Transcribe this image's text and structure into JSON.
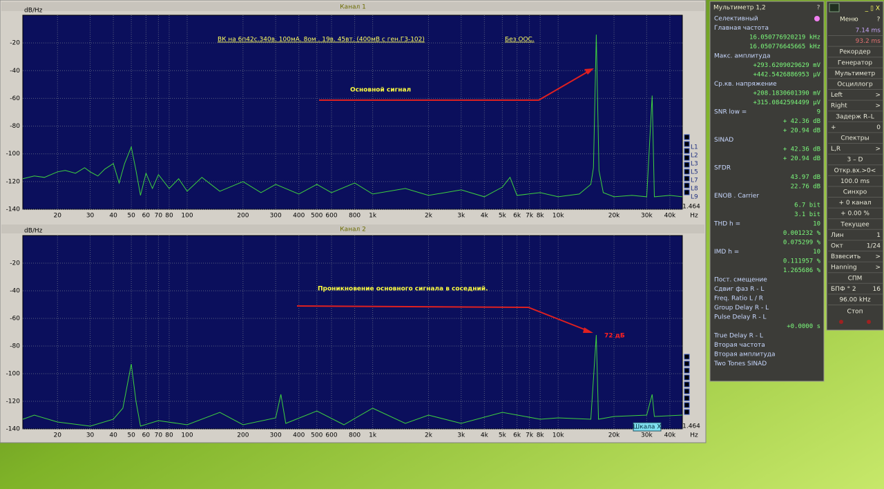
{
  "chart_data": [
    {
      "type": "line",
      "title": "Канал 1",
      "ylabel": "dB/Hz",
      "xunit": "Hz",
      "log_x": true,
      "grid": true,
      "color": "#3fd23f",
      "scale": "1.464",
      "legend": [
        "L1",
        "L2",
        "L3",
        "L5",
        "L7",
        "L8",
        "L9"
      ],
      "annotations": [
        "ВК на 6п42с.340в. 100мА. 8ом . 19в. 45вт. (400мВ с ген.Г3-102)",
        "Без ООС.",
        "Основной сигнал"
      ],
      "xlim": [
        13,
        46700
      ],
      "ylim": [
        -140,
        0
      ],
      "xticks": [
        20,
        30,
        40,
        50,
        60,
        70,
        80,
        100,
        200,
        300,
        400,
        500,
        600,
        800,
        {
          "value": 1000,
          "label": "1k"
        },
        {
          "value": 2000,
          "label": "2k"
        },
        {
          "value": 3000,
          "label": "3k"
        },
        {
          "value": 4000,
          "label": "4k"
        },
        {
          "value": 5000,
          "label": "5k"
        },
        {
          "value": 6000,
          "label": "6k"
        },
        {
          "value": 7000,
          "label": "7k"
        },
        {
          "value": 8000,
          "label": "8k"
        },
        {
          "value": 10000,
          "label": "10k"
        },
        {
          "value": 20000,
          "label": "20k"
        },
        {
          "value": 30000,
          "label": "30k"
        },
        {
          "value": 40000,
          "label": "40k"
        }
      ],
      "yticks": [
        -140,
        -120,
        -100,
        -80,
        -60,
        -40,
        -20
      ],
      "x": [
        13,
        15,
        17,
        20,
        22,
        25,
        28,
        30,
        33,
        36,
        40,
        43,
        46,
        50,
        53,
        56,
        60,
        65,
        70,
        80,
        90,
        100,
        120,
        150,
        200,
        250,
        300,
        400,
        500,
        600,
        800,
        1000,
        1500,
        2000,
        3000,
        4000,
        5000,
        5500,
        6000,
        8000,
        10000,
        13000,
        15000,
        15500,
        16050,
        16600,
        17500,
        20000,
        25000,
        30000,
        32100,
        33000,
        40000,
        46700
      ],
      "values": [
        -118,
        -116,
        -117,
        -113,
        -112,
        -114,
        -110,
        -113,
        -116,
        -111,
        -107,
        -121,
        -107,
        -95,
        -112,
        -130,
        -114,
        -125,
        -115,
        -125,
        -118,
        -127,
        -117,
        -127,
        -120,
        -128,
        -122,
        -129,
        -122,
        -128,
        -121,
        -129,
        -125,
        -130,
        -126,
        -131,
        -124,
        -117,
        -130,
        -128,
        -131,
        -129,
        -122,
        -110,
        -14,
        -112,
        -128,
        -131,
        -130,
        -131,
        -58,
        -131,
        -130,
        -131
      ]
    },
    {
      "type": "line",
      "title": "Канал 2",
      "ylabel": "dB/Hz",
      "xunit": "Hz",
      "log_x": true,
      "grid": true,
      "color": "#3fd23f",
      "scale": "1.464",
      "button": "Шкала X",
      "annotations": [
        "Проникновение основного сигнала в соседний.",
        "72 дБ"
      ],
      "xlim": [
        13,
        46700
      ],
      "ylim": [
        -140,
        0
      ],
      "xticks": [
        20,
        30,
        40,
        50,
        60,
        70,
        80,
        100,
        200,
        300,
        400,
        500,
        600,
        800,
        {
          "value": 1000,
          "label": "1k"
        },
        {
          "value": 2000,
          "label": "2k"
        },
        {
          "value": 3000,
          "label": "3k"
        },
        {
          "value": 4000,
          "label": "4k"
        },
        {
          "value": 5000,
          "label": "5k"
        },
        {
          "value": 6000,
          "label": "6k"
        },
        {
          "value": 7000,
          "label": "7k"
        },
        {
          "value": 8000,
          "label": "8k"
        },
        {
          "value": 10000,
          "label": "10k"
        },
        {
          "value": 20000,
          "label": "20k"
        },
        {
          "value": 30000,
          "label": "30k"
        },
        {
          "value": 40000,
          "label": "40k"
        }
      ],
      "yticks": [
        -140,
        -120,
        -100,
        -80,
        -60,
        -40,
        -20
      ],
      "x": [
        13,
        15,
        20,
        30,
        40,
        45,
        50,
        53,
        56,
        70,
        100,
        150,
        200,
        300,
        320,
        340,
        500,
        700,
        1000,
        1500,
        2000,
        3000,
        5000,
        8000,
        10000,
        15000,
        16050,
        16500,
        20000,
        30000,
        32100,
        33000,
        46700
      ],
      "values": [
        -133,
        -130,
        -135,
        -138,
        -133,
        -125,
        -93,
        -120,
        -138,
        -134,
        -137,
        -128,
        -137,
        -132,
        -115,
        -136,
        -127,
        -137,
        -125,
        -136,
        -130,
        -136,
        -128,
        -133,
        -132,
        -133,
        -72,
        -133,
        -131,
        -130,
        -115,
        -131,
        -130
      ]
    }
  ],
  "multimeter": {
    "title": "Мультиметр 1,2",
    "help": "?",
    "rows": [
      {
        "label": "Селективный"
      },
      {
        "label": "Главная частота"
      },
      {
        "value": "16.050776920219 kHz"
      },
      {
        "value": "16.050776645665 kHz"
      },
      {
        "label": "Макс. амплитуда"
      },
      {
        "value": "+293.6209029629 mV"
      },
      {
        "value": "+442.5426886953 µV"
      },
      {
        "label": "Ср.кв. напряжение"
      },
      {
        "value": "+208.1830601390 mV"
      },
      {
        "value": "+315.0842594499 µV"
      },
      {
        "label": "SNR    low =",
        "value": "9"
      },
      {
        "value": "+ 42.36 dB"
      },
      {
        "value": "+ 20.94 dB"
      },
      {
        "label": "SINAD"
      },
      {
        "value": "+ 42.36 dB"
      },
      {
        "value": "+ 20.94 dB"
      },
      {
        "label": "SFDR"
      },
      {
        "value": "43.97 dB"
      },
      {
        "value": "22.76 dB"
      },
      {
        "label": "ENOB . Carrier"
      },
      {
        "value": "6.7 bit"
      },
      {
        "value": "3.1 bit"
      },
      {
        "label": "THD        h =",
        "value": "10"
      },
      {
        "value": "0.001232 %"
      },
      {
        "value": "0.075299 %"
      },
      {
        "label": "IMD        h =",
        "value": "10"
      },
      {
        "value": "0.111957 %"
      },
      {
        "value": "1.265686 %"
      },
      {
        "label": "Пост. смещение"
      },
      {
        "label": "Сдвиг фаз R - L"
      },
      {
        "label": "Freq. Ratio  L / R"
      },
      {
        "label": "Group Delay R - L"
      },
      {
        "label": "Pulse Delay R - L"
      },
      {
        "value": "+0.0000  s"
      },
      {
        "label": "True Delay R - L"
      },
      {
        "label": "Вторая частота"
      },
      {
        "label": "Вторая амплитуда"
      },
      {
        "label": "Two Tones SINAD"
      }
    ]
  },
  "panel": {
    "window_buttons": "_ ▯ X",
    "title": "Меню",
    "help": "?",
    "stop": "Стоп",
    "rows": [
      {
        "value": "7.14 ms"
      },
      {
        "value": "93.2 ms"
      },
      {
        "label": "Рекордер"
      },
      {
        "label": "Генератор"
      },
      {
        "label": "Мультиметр"
      },
      {
        "label": "Осциллогр"
      },
      {
        "label": "Left",
        "value": ">"
      },
      {
        "label": "Right",
        "value": ">"
      },
      {
        "label": "Задерж R–L"
      },
      {
        "label": "+",
        "value": "0"
      },
      {
        "label": "Спектры"
      },
      {
        "label": "L,R",
        "value": ">"
      },
      {
        "label": "3 – D"
      },
      {
        "label": "Откр.вх.>0<"
      },
      {
        "label": "100.0 ms"
      },
      {
        "label": "Синхро"
      },
      {
        "label": "+ 0 канал"
      },
      {
        "label": "+ 0.00 %"
      },
      {
        "label": "Текущее"
      },
      {
        "label": "Лин",
        "value": "1"
      },
      {
        "label": "Окт",
        "value": "1/24"
      },
      {
        "label": "Взвесить",
        "value": ">"
      },
      {
        "label": "Hanning",
        "value": ">"
      },
      {
        "label": "СПМ"
      },
      {
        "label": "БПФ ° 2",
        "value": "16"
      },
      {
        "label": "96.00 kHz"
      }
    ]
  }
}
